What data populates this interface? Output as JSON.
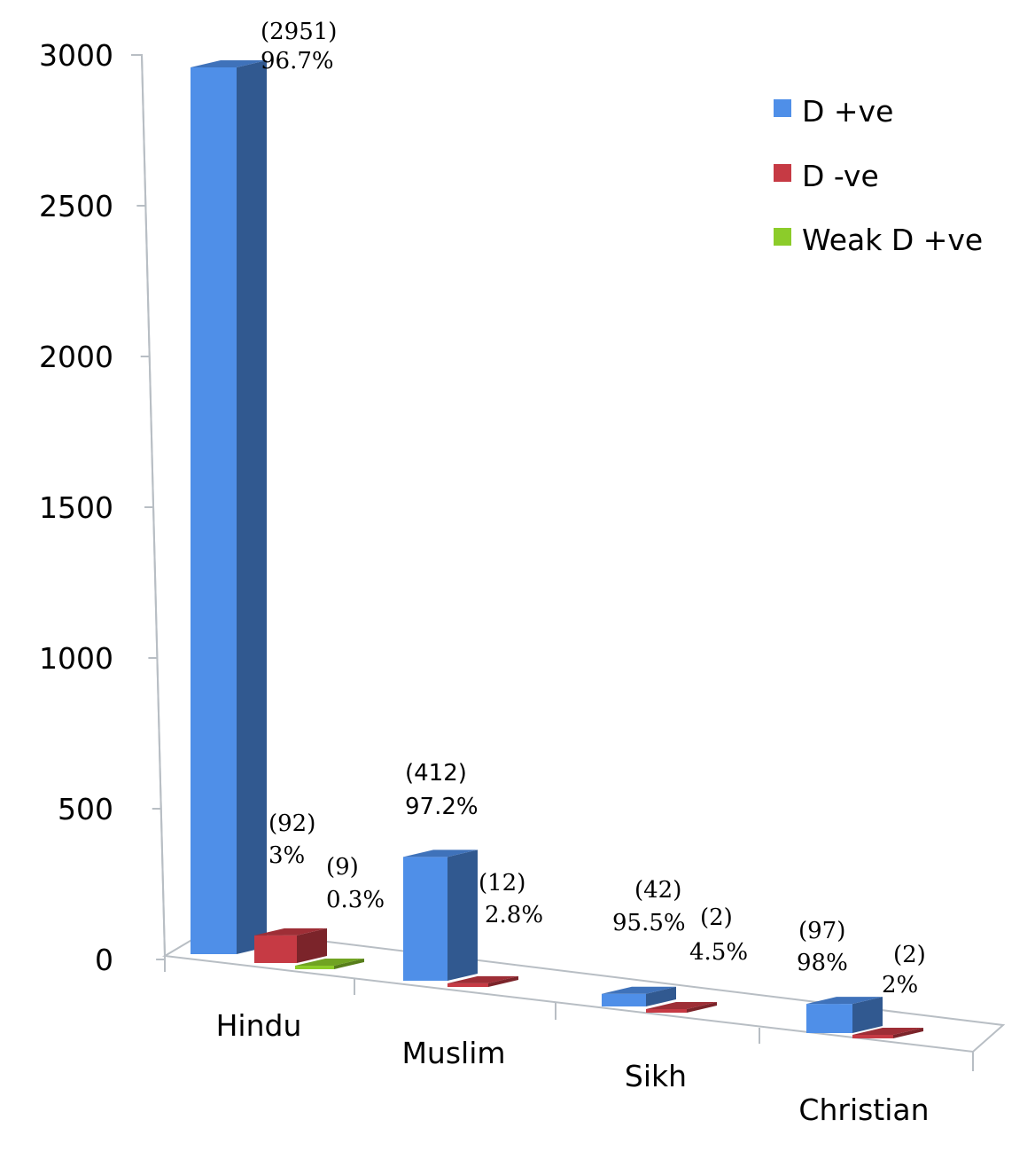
{
  "chart_data": {
    "type": "bar",
    "title": "",
    "xlabel": "",
    "ylabel": "",
    "ylim": [
      0,
      3000
    ],
    "yticks": [
      "0",
      "500",
      "1000",
      "1500",
      "2000",
      "2500",
      "3000"
    ],
    "categories": [
      "Hindu",
      "Muslim",
      "Sikh",
      "Christian"
    ],
    "series": [
      {
        "name": "D +ve",
        "color": "#4f8fe8",
        "values": [
          2951,
          412,
          42,
          97
        ]
      },
      {
        "name": "D -ve",
        "color": "#c63a44",
        "values": [
          92,
          12,
          2,
          2
        ]
      },
      {
        "name": "Weak D +ve",
        "color": "#8ccc2a",
        "values": [
          9,
          0,
          0,
          0
        ]
      }
    ],
    "data_labels": [
      {
        "count": "(2951)",
        "percent": "96.7%"
      },
      {
        "count": "(92)",
        "percent": "3%"
      },
      {
        "count": "(9)",
        "percent": "0.3%"
      },
      {
        "count": "(412)",
        "percent": "97.2%"
      },
      {
        "count": "(12)",
        "percent": "2.8%"
      },
      {
        "count": "(42)",
        "percent": "95.5%"
      },
      {
        "count": "(2)",
        "percent": "4.5%"
      },
      {
        "count": "(97)",
        "percent": "98%"
      },
      {
        "count": "(2)",
        "percent": "2%"
      }
    ],
    "legend_position": "top-right",
    "grid": false
  }
}
